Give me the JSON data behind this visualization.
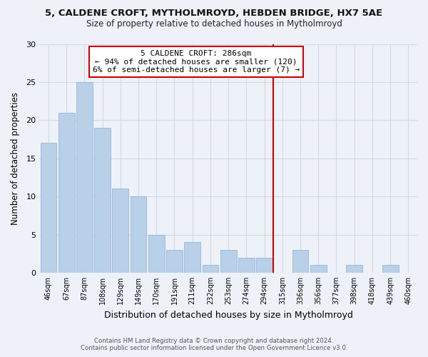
{
  "title1": "5, CALDENE CROFT, MYTHOLMROYD, HEBDEN BRIDGE, HX7 5AE",
  "title2": "Size of property relative to detached houses in Mytholmroyd",
  "xlabel": "Distribution of detached houses by size in Mytholmroyd",
  "ylabel": "Number of detached properties",
  "bar_labels": [
    "46sqm",
    "67sqm",
    "87sqm",
    "108sqm",
    "129sqm",
    "149sqm",
    "170sqm",
    "191sqm",
    "211sqm",
    "232sqm",
    "253sqm",
    "274sqm",
    "294sqm",
    "315sqm",
    "336sqm",
    "356sqm",
    "377sqm",
    "398sqm",
    "418sqm",
    "439sqm",
    "460sqm"
  ],
  "bar_values": [
    17,
    21,
    25,
    19,
    11,
    10,
    5,
    3,
    4,
    1,
    3,
    2,
    2,
    0,
    3,
    1,
    0,
    1,
    0,
    1,
    0
  ],
  "bar_color": "#b8d0e8",
  "vline_x": 12.5,
  "annotation_title": "5 CALDENE CROFT: 286sqm",
  "annotation_line1": "← 94% of detached houses are smaller (120)",
  "annotation_line2": "6% of semi-detached houses are larger (7) →",
  "annotation_box_color": "#ffffff",
  "annotation_box_edge": "#cc0000",
  "ylim": [
    0,
    30
  ],
  "yticks": [
    0,
    5,
    10,
    15,
    20,
    25,
    30
  ],
  "grid_color": "#d0d8e8",
  "bg_color": "#eef2f8",
  "footer1": "Contains HM Land Registry data © Crown copyright and database right 2024.",
  "footer2": "Contains public sector information licensed under the Open Government Licence v3.0."
}
